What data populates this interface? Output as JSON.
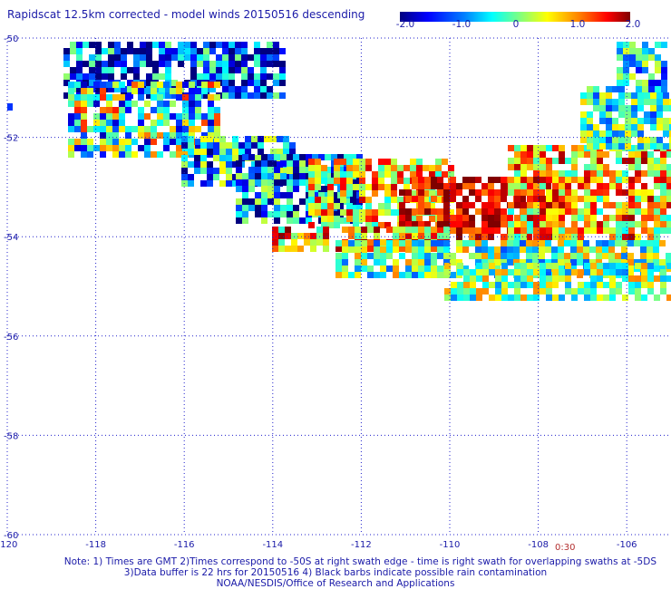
{
  "title": "Rapidscat 12.5km corrected - model winds 20150516 descending",
  "colorbar": {
    "ticks": [
      "-2.0",
      "-1.0",
      "0",
      "1.0",
      "2.0"
    ],
    "range": [
      -2.0,
      2.0
    ],
    "colors": [
      "#00007f",
      "#0000ff",
      "#007fff",
      "#00ffff",
      "#7fff7f",
      "#ffff00",
      "#ff7f00",
      "#ff0000",
      "#7f0000"
    ]
  },
  "map": {
    "lon_ticks": [
      "-120",
      "-118",
      "-116",
      "-114",
      "-112",
      "-110",
      "-108",
      "-106"
    ],
    "lat_ticks": [
      "-50",
      "-52",
      "-54",
      "-56",
      "-58",
      "-60"
    ],
    "lon_range": [
      -120,
      -105
    ],
    "lat_range": [
      -50,
      -60
    ],
    "grid_line_color": "#2222cc",
    "swath_time": "0:30"
  },
  "footer": {
    "line1": "Note: 1) Times are GMT 2)Times correspond to -50S at right swath edge - time is right swath for overlapping swaths at -5DS",
    "line2": "3)Data buffer is 22 hrs for 20150516 4) Black barbs indicate possible rain contamination",
    "line3": "NOAA/NESDIS/Office of Research and Applications"
  }
}
